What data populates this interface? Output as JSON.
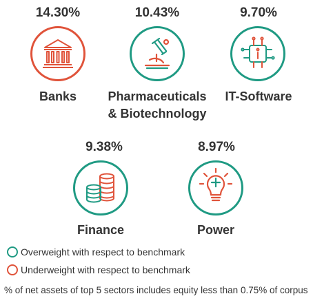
{
  "colors": {
    "overweight": "#1f9a83",
    "underweight": "#e0533a",
    "text": "#333333"
  },
  "chart_data": {
    "type": "table",
    "categories": [
      "Banks",
      "Pharmaceuticals & Biotechnology",
      "IT-Software",
      "Finance",
      "Power"
    ],
    "values": [
      14.3,
      10.43,
      9.7,
      9.38,
      8.97
    ],
    "unit": "%",
    "weighting": [
      "underweight",
      "overweight",
      "overweight",
      "overweight",
      "overweight"
    ]
  },
  "sectors": [
    {
      "pct": "14.30%",
      "name_line1": "Banks",
      "name_line2": "",
      "status": "underweight",
      "icon": "bank-icon"
    },
    {
      "pct": "10.43%",
      "name_line1": "Pharmaceuticals",
      "name_line2": "& Biotechnology",
      "status": "overweight",
      "icon": "microscope-icon"
    },
    {
      "pct": "9.70%",
      "name_line1": "IT-Software",
      "name_line2": "",
      "status": "overweight",
      "icon": "chip-icon"
    },
    {
      "pct": "9.38%",
      "name_line1": "Finance",
      "name_line2": "",
      "status": "overweight",
      "icon": "coins-icon"
    },
    {
      "pct": "8.97%",
      "name_line1": "Power",
      "name_line2": "",
      "status": "overweight",
      "icon": "bulb-icon"
    }
  ],
  "legend": {
    "overweight": "Overweight with respect to benchmark",
    "underweight": "Underweight with respect to benchmark"
  },
  "note": "% of net assets of top 5 sectors includes equity less than 0.75% of corpus"
}
